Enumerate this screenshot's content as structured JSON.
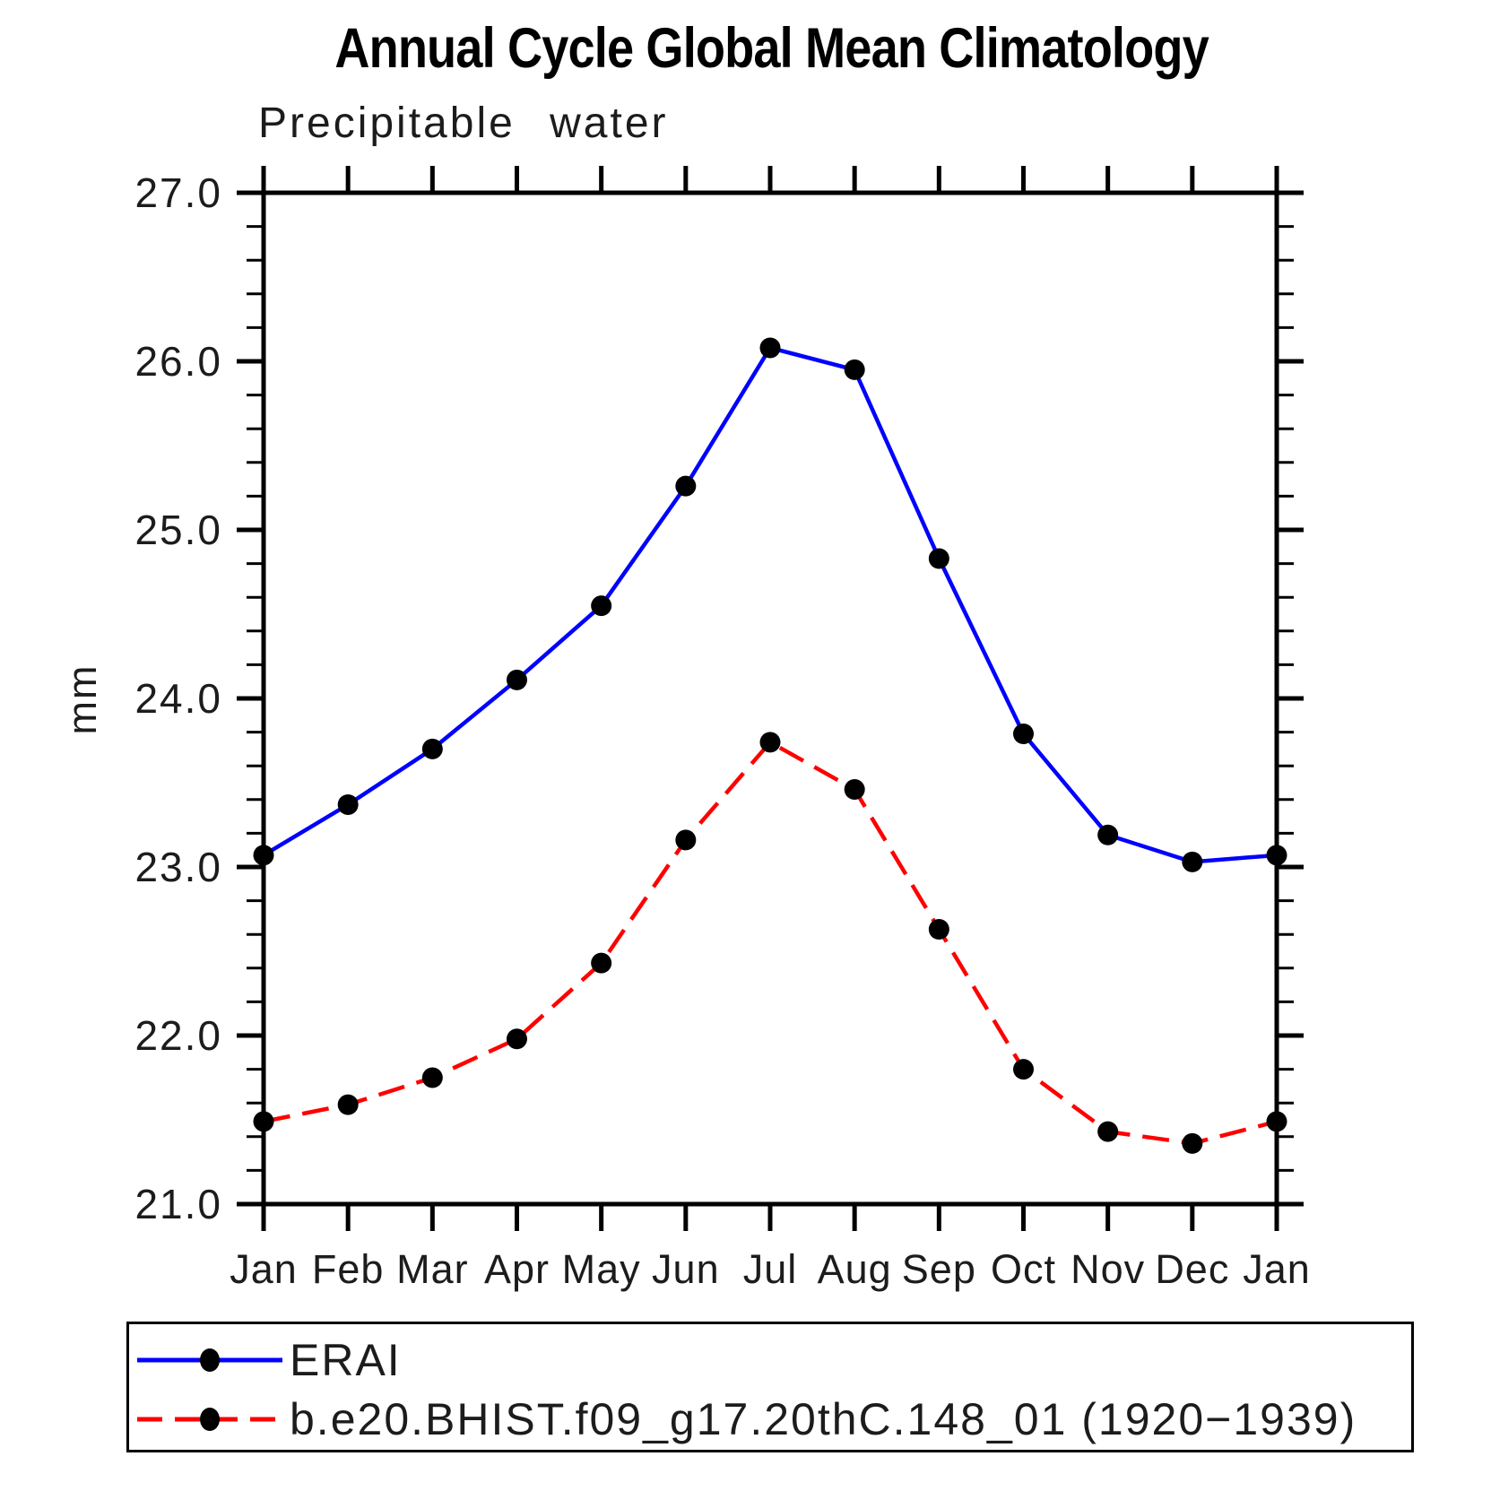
{
  "page": {
    "background": "#ffffff"
  },
  "chart_data": {
    "type": "line",
    "title": "Annual Cycle Global Mean Climatology",
    "subtitle": "Precipitable water",
    "ylabel": "mm",
    "xlabel": "",
    "categories": [
      "Jan",
      "Feb",
      "Mar",
      "Apr",
      "May",
      "Jun",
      "Jul",
      "Aug",
      "Sep",
      "Oct",
      "Nov",
      "Dec",
      "Jan"
    ],
    "ylim": [
      21.0,
      27.0
    ],
    "ytick_major_values": [
      21.0,
      22.0,
      23.0,
      24.0,
      25.0,
      26.0,
      27.0
    ],
    "ytick_major_labels": [
      "21.0",
      "22.0",
      "23.0",
      "24.0",
      "25.0",
      "26.0",
      "27.0"
    ],
    "ytick_minor_step": 0.2,
    "grid": false,
    "legend_position": "bottom-left",
    "axis_color": "#000000",
    "series": [
      {
        "name": "ERAI",
        "color": "#0000ff",
        "line_style": "solid",
        "marker": "filled-circle",
        "marker_color": "#000000",
        "values": [
          23.07,
          23.37,
          23.7,
          24.11,
          24.55,
          25.26,
          26.08,
          25.95,
          24.83,
          23.79,
          23.19,
          23.03,
          23.07
        ]
      },
      {
        "name": "b.e20.BHIST.f09_g17.20thC.148_01 (1920−1939)",
        "color": "#ff0000",
        "line_style": "dashed",
        "marker": "filled-circle",
        "marker_color": "#000000",
        "values": [
          21.49,
          21.59,
          21.75,
          21.98,
          22.43,
          23.16,
          23.74,
          23.46,
          22.63,
          21.8,
          21.43,
          21.36,
          21.49
        ]
      }
    ]
  }
}
